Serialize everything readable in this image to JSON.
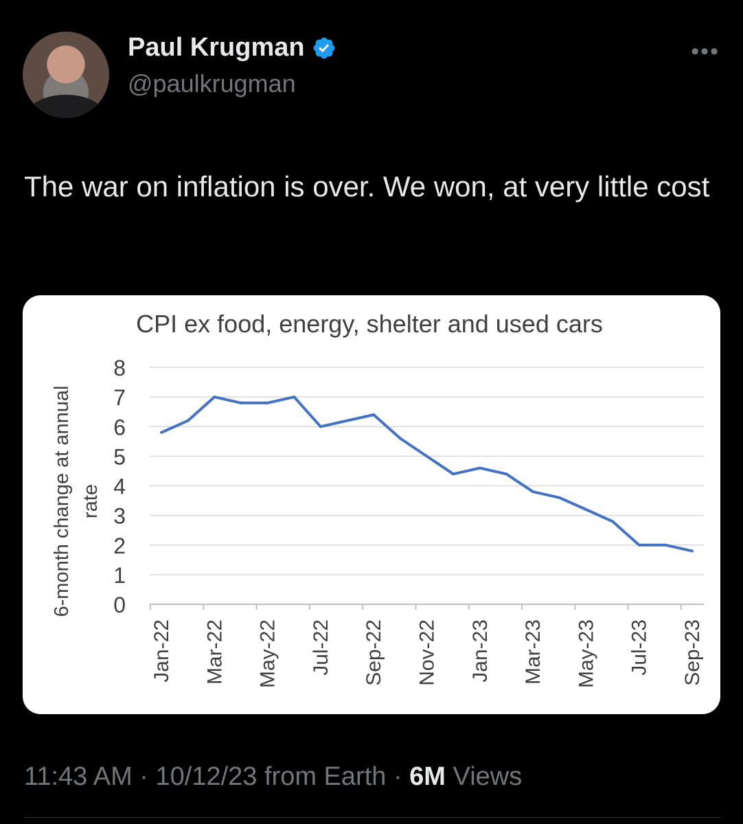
{
  "author": {
    "name": "Paul Krugman",
    "handle": "@paulkrugman",
    "verified_color": "#1d9bf0"
  },
  "more_icon": "more-horizontal-icon",
  "tweet": {
    "text": "The war on inflation is over. We won, at very little cost"
  },
  "meta": {
    "time": "11:43 AM",
    "sep1": "·",
    "date": "10/12/23",
    "source": "from Earth",
    "sep2": "·",
    "views_count": "6M",
    "views_label": "Views"
  },
  "chart_data": {
    "type": "line",
    "title": "CPI ex food, energy, shelter and used cars",
    "ylabel_line1": "6-month change at annual",
    "ylabel_line2": "rate",
    "ylim": [
      0,
      8
    ],
    "yticks": [
      0,
      1,
      2,
      3,
      4,
      5,
      6,
      7,
      8
    ],
    "grid": true,
    "line_color": "#4472c4",
    "x": [
      "Jan-22",
      "Feb-22",
      "Mar-22",
      "Apr-22",
      "May-22",
      "Jun-22",
      "Jul-22",
      "Aug-22",
      "Sep-22",
      "Oct-22",
      "Nov-22",
      "Dec-22",
      "Jan-23",
      "Feb-23",
      "Mar-23",
      "Apr-23",
      "May-23",
      "Jun-23",
      "Jul-23",
      "Aug-23",
      "Sep-23"
    ],
    "xtick_labels": [
      "Jan-22",
      "Mar-22",
      "May-22",
      "Jul-22",
      "Sep-22",
      "Nov-22",
      "Jan-23",
      "Mar-23",
      "May-23",
      "Jul-23",
      "Sep-23"
    ],
    "values": [
      5.8,
      6.2,
      7.0,
      6.8,
      6.8,
      7.0,
      6.0,
      6.2,
      6.4,
      5.6,
      5.0,
      4.4,
      4.6,
      4.4,
      3.8,
      3.6,
      3.2,
      2.8,
      2.0,
      2.0,
      1.8
    ]
  }
}
